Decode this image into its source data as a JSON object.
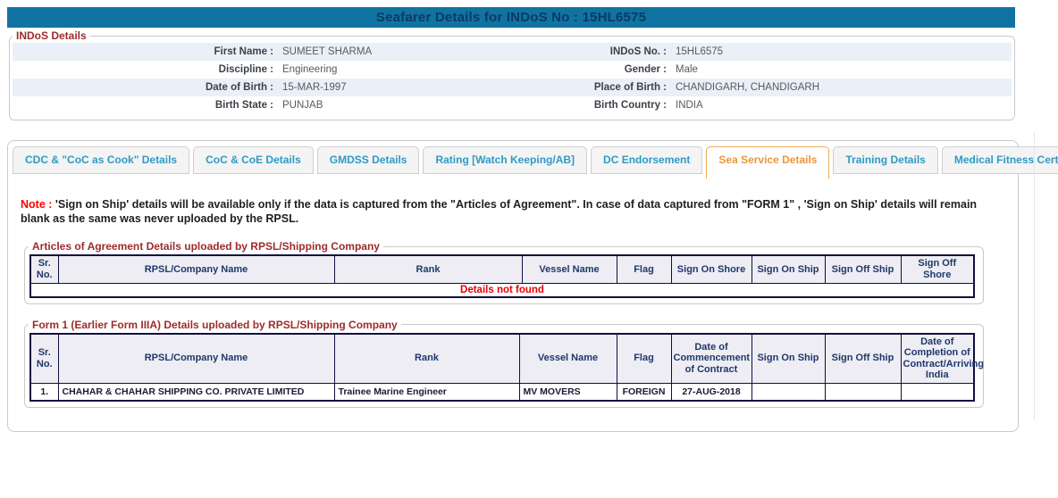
{
  "header": {
    "title": "Seafarer Details for INDoS No : 15HL6575"
  },
  "colors": {
    "title_bar": "#1173A2",
    "title_text": "#0A3B63",
    "legend_maroon": "#9E2B2B",
    "tab_blue": "#2F9AC4",
    "tab_active_orange": "#E8973B",
    "table_border_navy": "#101040",
    "error_red": "#E60000",
    "row_stripe": "#E9F0F8"
  },
  "indos_details": {
    "legend": "INDoS Details",
    "rows": [
      {
        "l1": "First Name :",
        "v1": "SUMEET SHARMA",
        "l2": "INDoS No. :",
        "v2": "15HL6575"
      },
      {
        "l1": "Discipline :",
        "v1": "Engineering",
        "l2": "Gender :",
        "v2": "Male"
      },
      {
        "l1": "Date of Birth :",
        "v1": "15-MAR-1997",
        "l2": "Place of Birth :",
        "v2": "CHANDIGARH, CHANDIGARH"
      },
      {
        "l1": "Birth State :",
        "v1": "PUNJAB",
        "l2": "Birth Country :",
        "v2": "INDIA"
      }
    ]
  },
  "tabs": {
    "items": [
      {
        "label": "CDC & \"CoC as Cook\" Details"
      },
      {
        "label": "CoC & CoE Details"
      },
      {
        "label": "GMDSS Details"
      },
      {
        "label": "Rating [Watch Keeping/AB]"
      },
      {
        "label": "DC Endorsement"
      },
      {
        "label": "Sea Service Details",
        "active": true
      },
      {
        "label": "Training Details"
      },
      {
        "label": "Medical Fitness Certificate"
      }
    ]
  },
  "note": {
    "label": "Note :",
    "text": " 'Sign on Ship' details will be available only if the data is captured from the \"Articles of Agreement\". In case of data captured from \"FORM 1\" , 'Sign on Ship' details will remain blank as the same was never uploaded by the RPSL."
  },
  "table1": {
    "legend": "Articles of Agreement Details uploaded by RPSL/Shipping Company",
    "headers": [
      "Sr. No.",
      "RPSL/Company Name",
      "Rank",
      "Vessel Name",
      "Flag",
      "Sign On Shore",
      "Sign On Ship",
      "Sign Off Ship",
      "Sign Off Shore"
    ],
    "empty_text": "Details not found"
  },
  "table2": {
    "legend": "Form 1 (Earlier Form IIIA) Details uploaded by RPSL/Shipping Company",
    "headers": [
      "Sr. No.",
      "RPSL/Company Name",
      "Rank",
      "Vessel Name",
      "Flag",
      "Date of Commencement of Contract",
      "Sign On Ship",
      "Sign Off Ship",
      "Date of Completion of Contract/Arriving India"
    ],
    "rows": [
      [
        "1.",
        "CHAHAR & CHAHAR SHIPPING CO. PRIVATE LIMITED",
        "Trainee Marine Engineer",
        "MV MOVERS",
        "FOREIGN",
        "27-AUG-2018",
        "",
        "",
        ""
      ]
    ]
  }
}
